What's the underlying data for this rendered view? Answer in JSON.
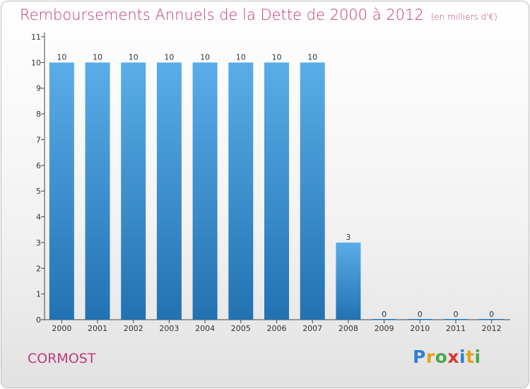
{
  "title": "Remboursements Annuels de la Dette de 2000 à 2012",
  "unit": "(en milliers d'€)",
  "commune": "CORMOST",
  "logo": {
    "letters": [
      {
        "ch": "P",
        "color": "#2f7fd3"
      },
      {
        "ch": "r",
        "color": "#e8a21a"
      },
      {
        "ch": "o",
        "color": "#4aa84a"
      },
      {
        "ch": "x",
        "color": "#d8362f"
      },
      {
        "ch": "i",
        "color": "#2f7fd3"
      },
      {
        "ch": "t",
        "color": "#e8a21a"
      },
      {
        "ch": "i",
        "color": "#4aa84a"
      }
    ]
  },
  "colors": {
    "bar_top": "#5aade8",
    "bar_bottom": "#2272b2",
    "title": "#c0397a",
    "axis": "#444444"
  },
  "chart_data": {
    "type": "bar",
    "title": "Remboursements Annuels de la Dette de 2000 à 2012",
    "categories": [
      "2000",
      "2001",
      "2002",
      "2003",
      "2004",
      "2005",
      "2006",
      "2007",
      "2008",
      "2009",
      "2010",
      "2011",
      "2012"
    ],
    "values": [
      10,
      10,
      10,
      10,
      10,
      10,
      10,
      10,
      3,
      0,
      0,
      0,
      0
    ],
    "data_labels": [
      "10",
      "10",
      "10",
      "10",
      "10",
      "10",
      "10",
      "10",
      "3",
      "0",
      "0",
      "0",
      "0"
    ],
    "yticks": [
      0,
      1,
      2,
      3,
      4,
      5,
      6,
      7,
      8,
      9,
      10,
      11
    ],
    "ylim": [
      0,
      11
    ],
    "grid": false,
    "legend": "none"
  }
}
